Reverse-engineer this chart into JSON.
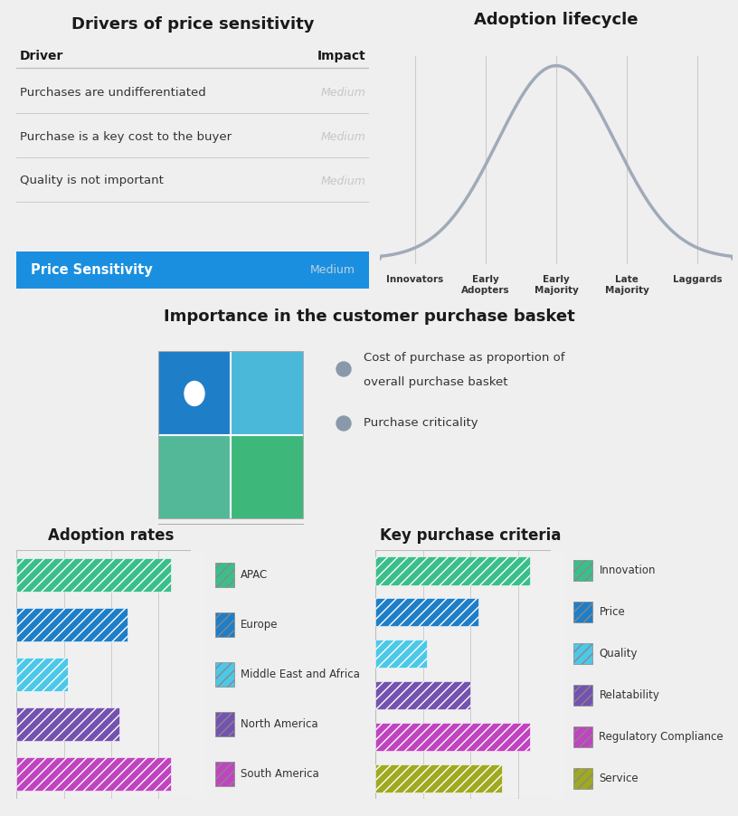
{
  "bg_color": "#efefef",
  "section_bg_light": "#ccd9e8",
  "top_bg": "#f0f0f0",
  "bot_bg": "#f0f0f0",
  "title_top_left": "Drivers of price sensitivity",
  "title_top_right": "Adoption lifecycle",
  "title_middle": "Importance in the customer purchase basket",
  "title_bottom_left": "Adoption rates",
  "title_bottom_right": "Key purchase criteria",
  "drivers": [
    {
      "label": "Purchases are undifferentiated",
      "impact": "Medium"
    },
    {
      "label": "Purchase is a key cost to the buyer",
      "impact": "Medium"
    },
    {
      "label": "Quality is not important",
      "impact": "Medium"
    }
  ],
  "price_sensitivity_label": "Price Sensitivity",
  "price_sensitivity_impact": "Medium",
  "lifecycle_stages": [
    "Innovators",
    "Early\nAdopters",
    "Early\nMajority",
    "Late\nMajority",
    "Laggards"
  ],
  "basket_legend_1": "Cost of purchase as proportion of",
  "basket_legend_1b": "overall purchase basket",
  "basket_legend_2": "Purchase criticality",
  "adoption_bars": {
    "labels": [
      "APAC",
      "Europe",
      "Middle East and Africa",
      "North America",
      "South America"
    ],
    "values": [
      195,
      140,
      65,
      130,
      195
    ],
    "colors": [
      "#3bbf8a",
      "#1e7ec8",
      "#4dc8e8",
      "#7452b0",
      "#c044c0"
    ]
  },
  "criteria_bars": {
    "labels": [
      "Innovation",
      "Price",
      "Quality",
      "Relatability",
      "Regulatory Compliance",
      "Service"
    ],
    "values": [
      195,
      130,
      65,
      120,
      195,
      160
    ],
    "colors": [
      "#3bbf8a",
      "#1e7ec8",
      "#4dc8e8",
      "#7452b0",
      "#c044c0",
      "#9faa20"
    ]
  },
  "price_sens_bg": "#1a8fe0",
  "line_color": "#a0aab8",
  "quadrant_colors": {
    "top_left": "#1e7ec8",
    "top_right": "#4ab8d8",
    "bottom_left": "#52b898",
    "bottom_right": "#3db87a"
  },
  "dot_color": "#8899aa"
}
